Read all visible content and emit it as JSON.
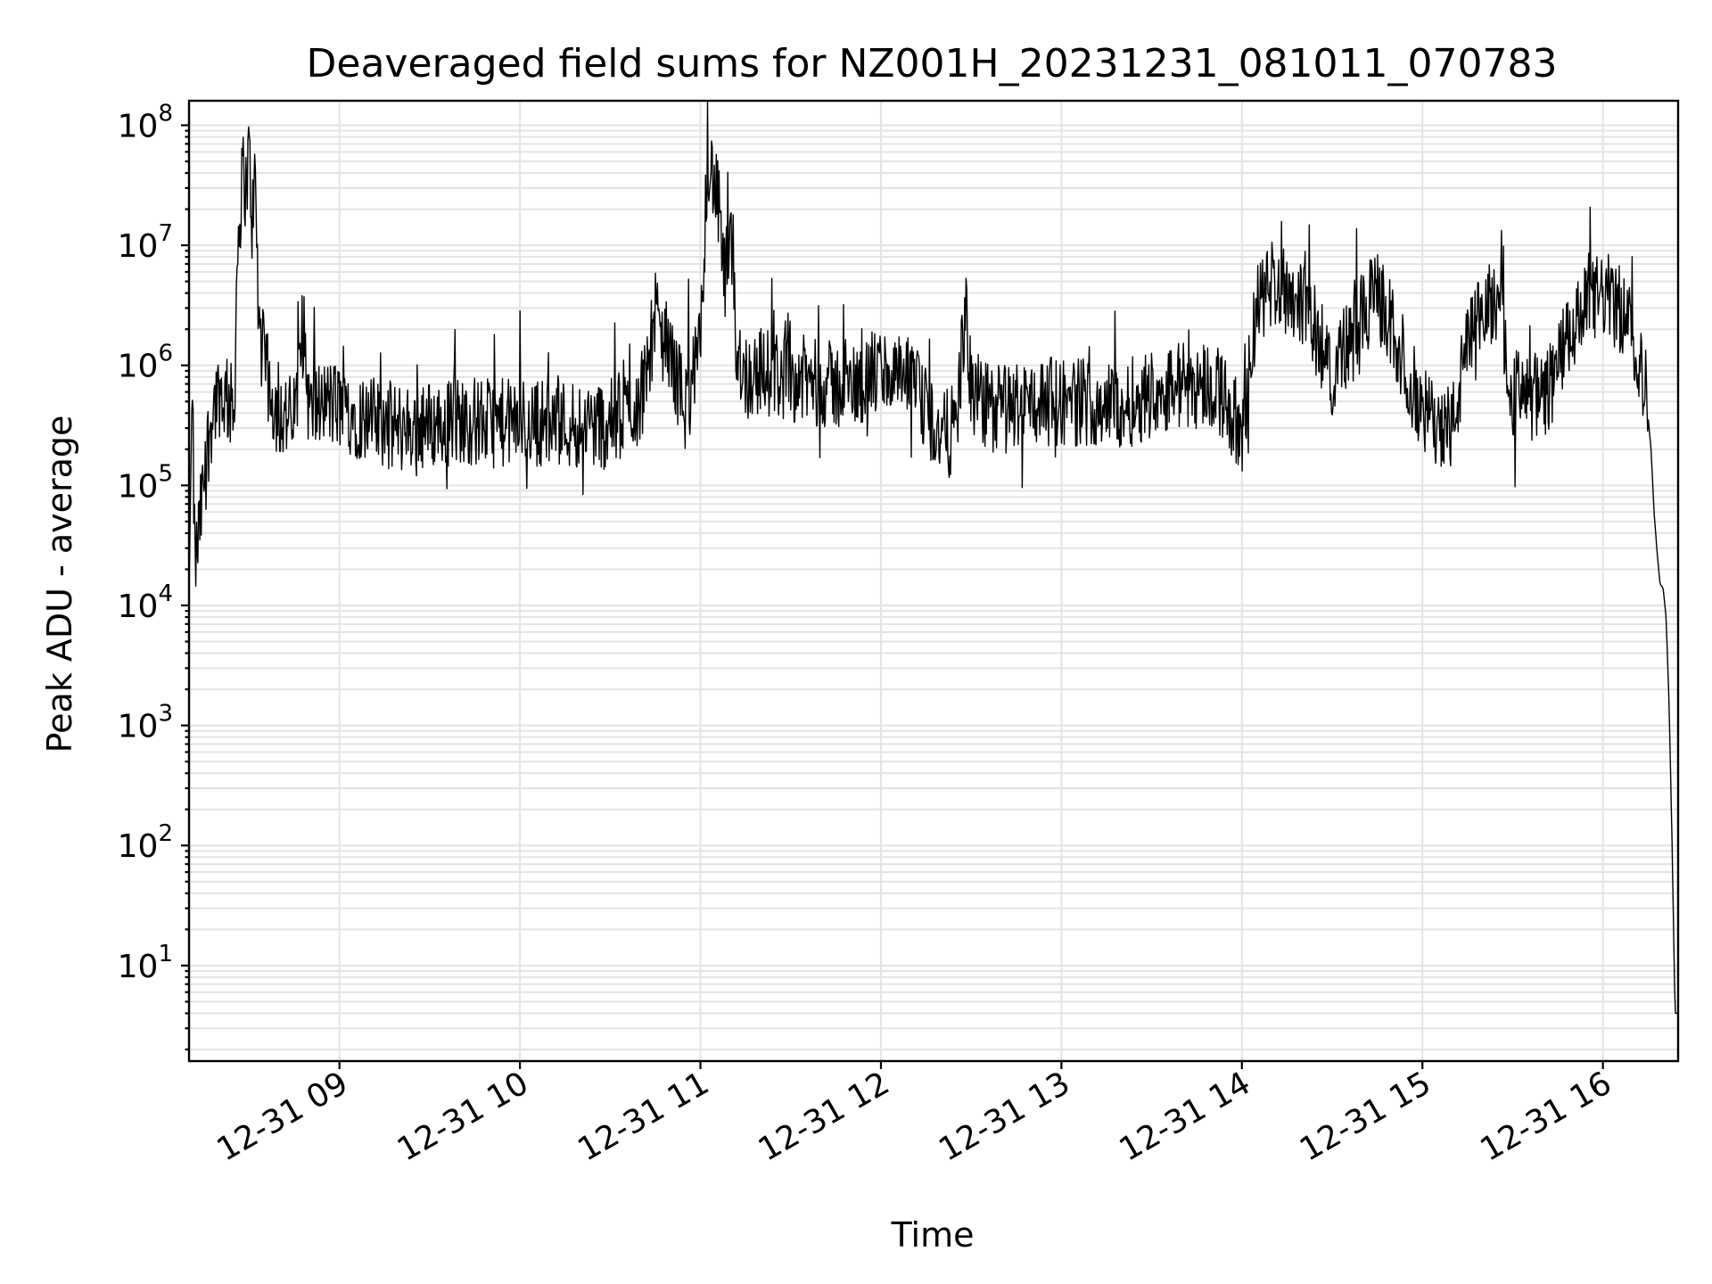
{
  "chart_data": {
    "type": "line",
    "title": "Deaveraged field sums for NZ001H_20231231_081011_070783",
    "xlabel": "Time",
    "ylabel": "Peak ADU - average",
    "yscale": "log",
    "ylim": [
      1.6,
      160000000
    ],
    "xlim": [
      "2023-12-31 08:10",
      "2023-12-31 16:25"
    ],
    "grid": "on (major and minor)",
    "legend": "none",
    "line_color": "#000000",
    "x_ticks": [
      "12-31 09",
      "12-31 10",
      "12-31 11",
      "12-31 12",
      "12-31 13",
      "12-31 14",
      "12-31 15",
      "12-31 16"
    ],
    "y_ticks": [
      {
        "base": "10",
        "exp": "1"
      },
      {
        "base": "10",
        "exp": "2"
      },
      {
        "base": "10",
        "exp": "3"
      },
      {
        "base": "10",
        "exp": "4"
      },
      {
        "base": "10",
        "exp": "5"
      },
      {
        "base": "10",
        "exp": "6"
      },
      {
        "base": "10",
        "exp": "7"
      },
      {
        "base": "10",
        "exp": "8"
      }
    ],
    "series": [
      {
        "x": [
          "2023-12-31 08:10",
          "2023-12-31 08:11",
          "2023-12-31 08:12",
          "2023-12-31 08:14",
          "2023-12-31 08:16",
          "2023-12-31 08:18",
          "2023-12-31 08:20",
          "2023-12-31 08:23",
          "2023-12-31 08:25",
          "2023-12-31 08:26",
          "2023-12-31 08:27",
          "2023-12-31 08:28",
          "2023-12-31 08:29",
          "2023-12-31 08:30",
          "2023-12-31 08:31",
          "2023-12-31 08:32",
          "2023-12-31 08:33",
          "2023-12-31 08:34",
          "2023-12-31 08:36",
          "2023-12-31 08:38",
          "2023-12-31 08:40",
          "2023-12-31 08:45",
          "2023-12-31 08:48",
          "2023-12-31 08:50",
          "2023-12-31 08:55",
          "2023-12-31 09:00",
          "2023-12-31 09:10",
          "2023-12-31 09:20",
          "2023-12-31 09:30",
          "2023-12-31 09:40",
          "2023-12-31 09:50",
          "2023-12-31 10:00",
          "2023-12-31 10:10",
          "2023-12-31 10:20",
          "2023-12-31 10:30",
          "2023-12-31 10:40",
          "2023-12-31 10:45",
          "2023-12-31 10:50",
          "2023-12-31 10:55",
          "2023-12-31 11:00",
          "2023-12-31 11:02",
          "2023-12-31 11:04",
          "2023-12-31 11:06",
          "2023-12-31 11:08",
          "2023-12-31 11:10",
          "2023-12-31 11:12",
          "2023-12-31 11:15",
          "2023-12-31 11:20",
          "2023-12-31 11:30",
          "2023-12-31 11:40",
          "2023-12-31 11:50",
          "2023-12-31 12:00",
          "2023-12-31 12:10",
          "2023-12-31 12:20",
          "2023-12-31 12:25",
          "2023-12-31 12:28",
          "2023-12-31 12:30",
          "2023-12-31 12:35",
          "2023-12-31 12:40",
          "2023-12-31 12:50",
          "2023-12-31 13:00",
          "2023-12-31 13:10",
          "2023-12-31 13:20",
          "2023-12-31 13:30",
          "2023-12-31 13:40",
          "2023-12-31 13:50",
          "2023-12-31 13:55",
          "2023-12-31 14:00",
          "2023-12-31 14:05",
          "2023-12-31 14:10",
          "2023-12-31 14:20",
          "2023-12-31 14:30",
          "2023-12-31 14:40",
          "2023-12-31 14:45",
          "2023-12-31 14:50",
          "2023-12-31 15:00",
          "2023-12-31 15:10",
          "2023-12-31 15:15",
          "2023-12-31 15:20",
          "2023-12-31 15:25",
          "2023-12-31 15:30",
          "2023-12-31 15:40",
          "2023-12-31 15:50",
          "2023-12-31 15:55",
          "2023-12-31 16:00",
          "2023-12-31 16:05",
          "2023-12-31 16:10",
          "2023-12-31 16:12",
          "2023-12-31 16:14",
          "2023-12-31 16:16",
          "2023-12-31 16:17",
          "2023-12-31 16:18",
          "2023-12-31 16:19",
          "2023-12-31 16:20",
          "2023-12-31 16:21",
          "2023-12-31 16:22",
          "2023-12-31 16:23",
          "2023-12-31 16:24",
          "2023-12-31 16:25"
        ],
        "y": [
          12000,
          600000,
          20000,
          60000,
          200000,
          450000,
          600000,
          500000,
          400000,
          8000000,
          20000000,
          40000000,
          30000000,
          60000000,
          15000000,
          40000000,
          3000000,
          1500000,
          800000,
          500000,
          400000,
          350000,
          2000000,
          400000,
          500000,
          450000,
          350000,
          300000,
          320000,
          350000,
          330000,
          330000,
          340000,
          320000,
          330000,
          500000,
          2500000,
          1200000,
          450000,
          1300000,
          35000000,
          40000000,
          20000000,
          5000000,
          10000000,
          1500000,
          800000,
          900000,
          800000,
          700000,
          650000,
          900000,
          700000,
          250000,
          300000,
          3000000,
          600000,
          450000,
          450000,
          500000,
          500000,
          500000,
          450000,
          600000,
          700000,
          700000,
          500000,
          250000,
          3000000,
          5000000,
          3500000,
          900000,
          2500000,
          4000000,
          2000000,
          400000,
          300000,
          1500000,
          2500000,
          4000000,
          600000,
          500000,
          2000000,
          3000000,
          4000000,
          3000000,
          2000000,
          1000000,
          700000,
          200000,
          60000,
          28000,
          15000,
          14000,
          8000,
          1500,
          100,
          4,
          4
        ]
      }
    ]
  }
}
